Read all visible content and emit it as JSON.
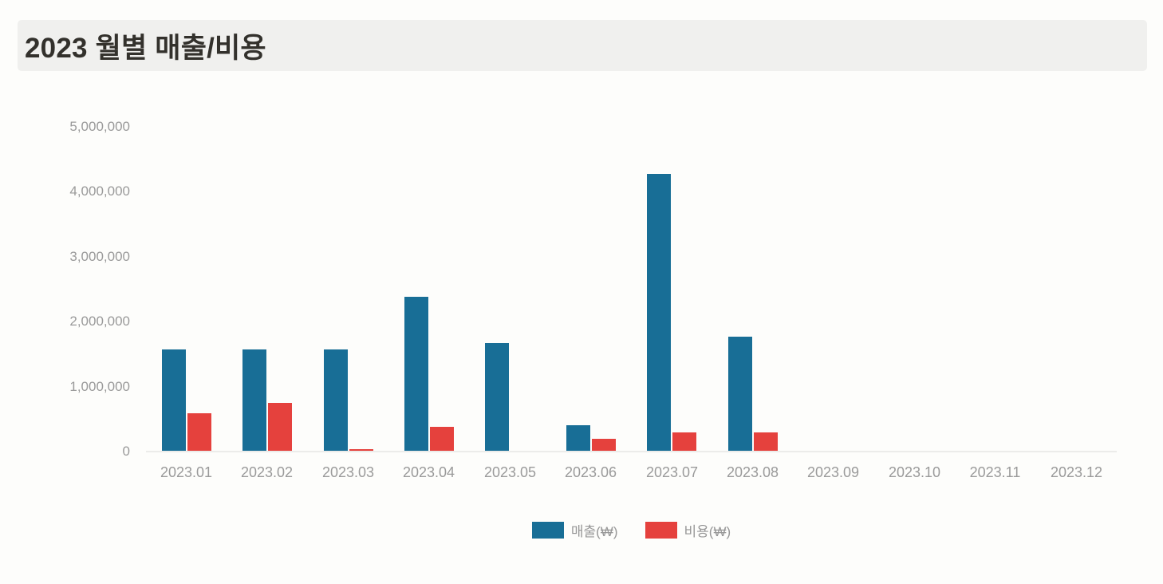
{
  "chart_data": {
    "type": "bar",
    "title": "2023 월별 매출/비용",
    "categories": [
      "2023.01",
      "2023.02",
      "2023.03",
      "2023.04",
      "2023.05",
      "2023.06",
      "2023.07",
      "2023.08",
      "2023.09",
      "2023.10",
      "2023.11",
      "2023.12"
    ],
    "series": [
      {
        "name": "매출(₩)",
        "key": "revenue",
        "color": "#186e96",
        "values": [
          1570000,
          1570000,
          1570000,
          2380000,
          1670000,
          400000,
          4280000,
          1770000,
          0,
          0,
          0,
          0
        ]
      },
      {
        "name": "비용(₩)",
        "key": "expense",
        "color": "#e5413d",
        "values": [
          590000,
          750000,
          40000,
          380000,
          0,
          200000,
          300000,
          290000,
          0,
          0,
          0,
          0
        ]
      }
    ],
    "ylim": [
      0,
      5000000
    ],
    "yticks": [
      0,
      1000000,
      2000000,
      3000000,
      4000000,
      5000000
    ],
    "ytick_labels": [
      "0",
      "1,000,000",
      "2,000,000",
      "3,000,000",
      "4,000,000",
      "5,000,000"
    ],
    "grid": false,
    "legend_position": "bottom",
    "colors": {
      "title_text": "#33312c",
      "title_band_bg": "#f0f0ee",
      "axis_label_text": "#9a9a9a",
      "axis_line": "#ececea",
      "page_bg": "#fdfdfb"
    }
  }
}
